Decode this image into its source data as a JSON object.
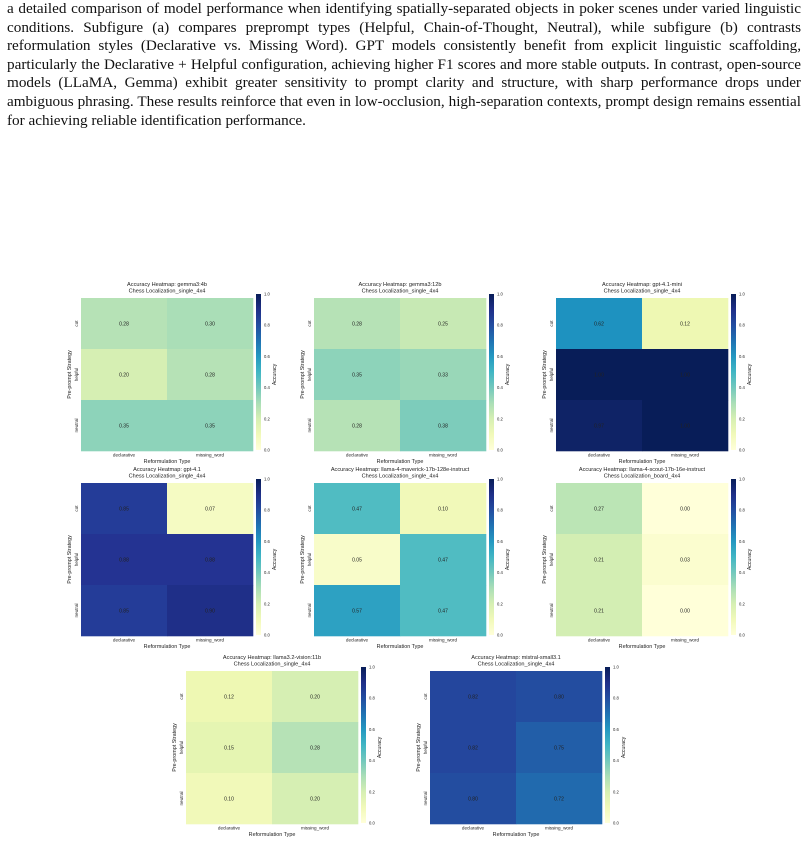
{
  "paragraph": "a detailed comparison of model performance when identifying spatially-separated objects in poker scenes under varied linguistic conditions. Subfigure (a) compares preprompt types (Helpful, Chain-of-Thought, Neutral), while subfigure (b) contrasts reformulation styles (Declarative vs. Missing Word). GPT models consistently benefit from explicit linguistic scaffolding, particularly the Declarative + Helpful configuration, achieving higher F1 scores and more stable outputs. In contrast, open-source models (LLaMA, Gemma) exhibit greater sensitivity to prompt clarity and structure, with sharp performance drops under ambiguous phrasing. These results reinforce that even in low-occlusion, high-separation contexts, prompt design remains essential for achieving reliable identification performance.",
  "shared": {
    "xlabel": "Reformulation Type",
    "ylabel": "Pre-prompt Strategy",
    "colorbar_label": "Accuracy",
    "x_ticks": [
      "declarative",
      "missing_word"
    ],
    "y_ticks": [
      "cot",
      "helpful",
      "neutral"
    ],
    "cbar_ticks": [
      "0.0",
      "0.2",
      "0.4",
      "0.6",
      "0.8",
      "1.0"
    ],
    "colormap": "YlGnBu"
  },
  "chart_data": [
    {
      "type": "heatmap",
      "title": "Accuracy Heatmap: gemma3:4b",
      "subtitle": "Chess Localization_single_4x4",
      "values": [
        [
          0.28,
          0.3
        ],
        [
          0.2,
          0.28
        ],
        [
          0.35,
          0.35
        ]
      ],
      "labels": [
        [
          "0.28",
          "0.30"
        ],
        [
          "0.20",
          "0.28"
        ],
        [
          "0.35",
          "0.35"
        ]
      ]
    },
    {
      "type": "heatmap",
      "title": "Accuracy Heatmap: gemma3:12b",
      "subtitle": "Chess Localization_single_4x4",
      "values": [
        [
          0.28,
          0.25
        ],
        [
          0.35,
          0.33
        ],
        [
          0.28,
          0.38
        ]
      ],
      "labels": [
        [
          "0.28",
          "0.25"
        ],
        [
          "0.35",
          "0.33"
        ],
        [
          "0.28",
          "0.38"
        ]
      ]
    },
    {
      "type": "heatmap",
      "title": "Accuracy Heatmap: gpt-4.1-mini",
      "subtitle": "Chess Localization_single_4x4",
      "values": [
        [
          0.62,
          0.12
        ],
        [
          1.0,
          1.0
        ],
        [
          0.97,
          1.0
        ]
      ],
      "labels": [
        [
          "0.62",
          "0.12"
        ],
        [
          "1.00",
          "1.00"
        ],
        [
          "0.97",
          "1.00"
        ]
      ]
    },
    {
      "type": "heatmap",
      "title": "Accuracy Heatmap: gpt-4.1",
      "subtitle": "Chess Localization_single_4x4",
      "values": [
        [
          0.85,
          0.07
        ],
        [
          0.88,
          0.88
        ],
        [
          0.85,
          0.9
        ]
      ],
      "labels": [
        [
          "0.85",
          "0.07"
        ],
        [
          "0.88",
          "0.88"
        ],
        [
          "0.85",
          "0.90"
        ]
      ]
    },
    {
      "type": "heatmap",
      "title": "Accuracy Heatmap: llama-4-maverick-17b-128e-instruct",
      "subtitle": "Chess Localization_single_4x4",
      "values": [
        [
          0.47,
          0.1
        ],
        [
          0.05,
          0.47
        ],
        [
          0.57,
          0.47
        ]
      ],
      "labels": [
        [
          "0.47",
          "0.10"
        ],
        [
          "0.05",
          "0.47"
        ],
        [
          "0.57",
          "0.47"
        ]
      ]
    },
    {
      "type": "heatmap",
      "title": "Accuracy Heatmap: llama-4-scout-17b-16e-instruct",
      "subtitle": "Chess Localization_board_4x4",
      "values": [
        [
          0.27,
          0.0
        ],
        [
          0.21,
          0.03
        ],
        [
          0.21,
          0.0
        ]
      ],
      "labels": [
        [
          "0.27",
          "0.00"
        ],
        [
          "0.21",
          "0.03"
        ],
        [
          "0.21",
          "0.00"
        ]
      ]
    },
    {
      "type": "heatmap",
      "title": "Accuracy Heatmap: llama3.2-vision:11b",
      "subtitle": "Chess Localization_single_4x4",
      "values": [
        [
          0.12,
          0.2
        ],
        [
          0.15,
          0.28
        ],
        [
          0.1,
          0.2
        ]
      ],
      "labels": [
        [
          "0.12",
          "0.20"
        ],
        [
          "0.15",
          "0.28"
        ],
        [
          "0.10",
          "0.20"
        ]
      ]
    },
    {
      "type": "heatmap",
      "title": "Accuracy Heatmap: mistral-small3.1",
      "subtitle": "Chess Localization_single_4x4",
      "values": [
        [
          0.82,
          0.8
        ],
        [
          0.82,
          0.75
        ],
        [
          0.8,
          0.72
        ]
      ],
      "labels": [
        [
          "0.82",
          "0.80"
        ],
        [
          "0.82",
          "0.75"
        ],
        [
          "0.80",
          "0.72"
        ]
      ]
    }
  ]
}
